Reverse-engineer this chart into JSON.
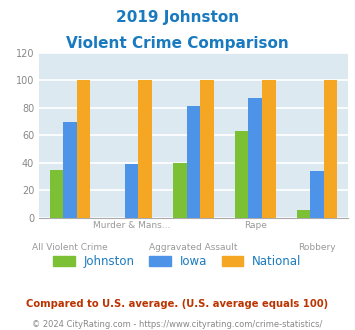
{
  "title_line1": "2019 Johnston",
  "title_line2": "Violent Crime Comparison",
  "title_color": "#1a7abf",
  "johnston_values": [
    35,
    0,
    40,
    63,
    6
  ],
  "iowa_values": [
    70,
    39,
    81,
    87,
    34
  ],
  "national_values": [
    100,
    100,
    100,
    100,
    100
  ],
  "johnston_color": "#7cc035",
  "iowa_color": "#4d94e8",
  "national_color": "#f5a623",
  "ylim": [
    0,
    120
  ],
  "yticks": [
    0,
    20,
    40,
    60,
    80,
    100,
    120
  ],
  "background_color": "#dce9f0",
  "grid_color": "#ffffff",
  "legend_labels": [
    "Johnston",
    "Iowa",
    "National"
  ],
  "legend_label_color": "#1a7abf",
  "top_xlabels": [
    "",
    "Murder & Mans...",
    "",
    "Rape",
    ""
  ],
  "bottom_xlabels": [
    "All Violent Crime",
    "",
    "Aggravated Assault",
    "",
    "Robbery"
  ],
  "footnote1": "Compared to U.S. average. (U.S. average equals 100)",
  "footnote2": "© 2024 CityRating.com - https://www.cityrating.com/crime-statistics/",
  "footnote1_color": "#bb3300",
  "footnote2_color": "#888888",
  "footnote2_link_color": "#4d94e8"
}
